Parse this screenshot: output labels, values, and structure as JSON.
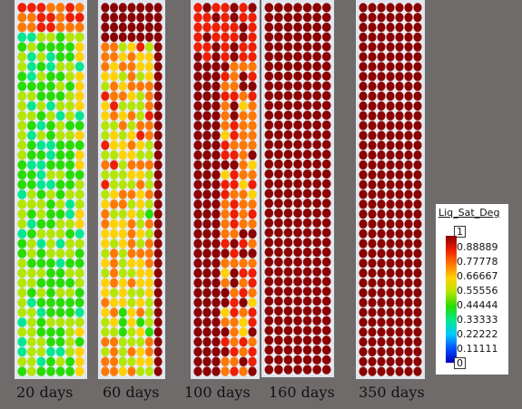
{
  "columns": [
    {
      "label": "20 days",
      "scheme": "c20"
    },
    {
      "label": "60 days",
      "scheme": "c60"
    },
    {
      "label": "100 days",
      "scheme": "c100"
    },
    {
      "label": "160 days",
      "scheme": "c160"
    },
    {
      "label": "350 days",
      "scheme": "c350"
    }
  ],
  "legend": {
    "title": "Liq_Sat_Deg",
    "max_box": "1",
    "min_box": "0",
    "ticks": [
      "0.88889",
      "0.77778",
      "0.66667",
      "0.55556",
      "0.44444",
      "0.33333",
      "0.22222",
      "0.11111"
    ]
  },
  "colors": {
    "background": "#6f6b6a",
    "saturated": "#8b0000",
    "colormap": [
      "#0000c0",
      "#0050ff",
      "#00c8ff",
      "#00e890",
      "#28dc00",
      "#b4e600",
      "#ffd200",
      "#ff7800",
      "#f01e00",
      "#8b0000"
    ]
  }
}
